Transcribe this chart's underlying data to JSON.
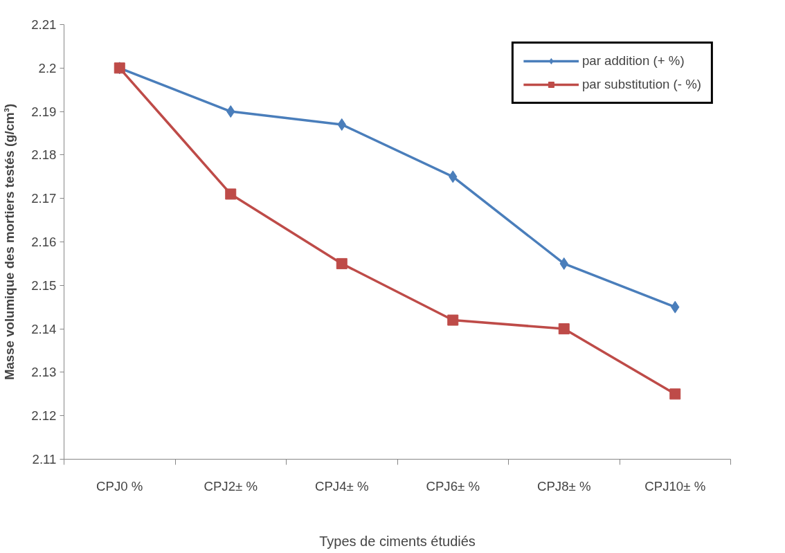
{
  "chart_data": {
    "type": "line",
    "xlabel": "Types de ciments étudiés",
    "ylabel": "Masse volumique des mortiers testés (g/cm³)",
    "categories": [
      "CPJ0 %",
      "CPJ2± %",
      "CPJ4± %",
      "CPJ6± %",
      "CPJ8± %",
      "CPJ10± %"
    ],
    "series": [
      {
        "name": "par addition (+ %)",
        "color": "#4a7ebb",
        "marker": "diamond",
        "values": [
          2.2,
          2.19,
          2.187,
          2.175,
          2.155,
          2.145
        ]
      },
      {
        "name": "par substitution (- %)",
        "color": "#be4b48",
        "marker": "square",
        "values": [
          2.2,
          2.171,
          2.155,
          2.142,
          2.14,
          2.125
        ]
      }
    ],
    "ylim": [
      2.11,
      2.21
    ],
    "yticks": [
      2.11,
      2.12,
      2.13,
      2.14,
      2.15,
      2.16,
      2.17,
      2.18,
      2.19,
      2.2,
      2.21
    ],
    "grid": false,
    "legend": "top right",
    "line_style": "solid"
  }
}
